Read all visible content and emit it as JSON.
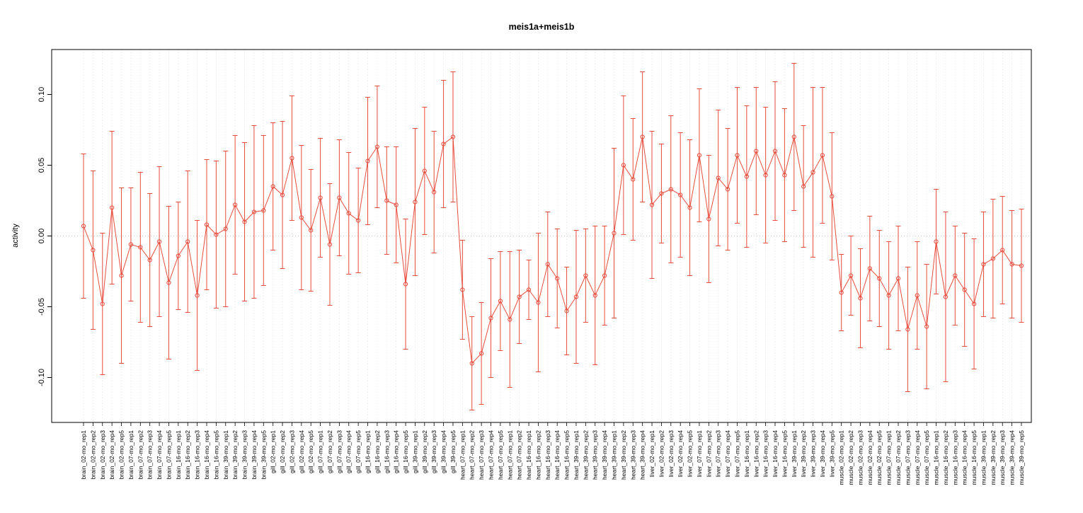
{
  "chart_data": {
    "type": "line",
    "title": "meis1a+meis1b",
    "xlabel": "",
    "ylabel": "activity",
    "legend": "none",
    "point_style": "open-circle",
    "error_bars": true,
    "series_color": "#e74c3c",
    "grid_color": "#d9d9d9",
    "zero_line_color": "#bbbbbb",
    "grid": "vertical dotted line per category, dotted horizontal line at 0",
    "ylim": [
      -0.13,
      0.125
    ],
    "ytick_values": [
      -0.1,
      -0.05,
      0.0,
      0.05,
      0.1
    ],
    "ytick_labels": [
      "-0.10",
      "-0.05",
      "0.00",
      "0.05",
      "0.10"
    ],
    "categories": [
      "brain_02-mo_rep1",
      "brain_02-mo_rep2",
      "brain_02-mo_rep3",
      "brain_02-mo_rep4",
      "brain_02-mo_rep5",
      "brain_07-mo_rep1",
      "brain_07-mo_rep2",
      "brain_07-mo_rep3",
      "brain_07-mo_rep4",
      "brain_07-mo_rep5",
      "brain_16-mo_rep1",
      "brain_16-mo_rep2",
      "brain_16-mo_rep3",
      "brain_16-mo_rep4",
      "brain_16-mo_rep5",
      "brain_39-mo_rep1",
      "brain_39-mo_rep2",
      "brain_39-mo_rep3",
      "brain_39-mo_rep4",
      "brain_39-mo_rep5",
      "gill_02-mo_rep1",
      "gill_02-mo_rep2",
      "gill_02-mo_rep3",
      "gill_02-mo_rep4",
      "gill_02-mo_rep5",
      "gill_07-mo_rep1",
      "gill_07-mo_rep2",
      "gill_07-mo_rep3",
      "gill_07-mo_rep4",
      "gill_07-mo_rep5",
      "gill_16-mo_rep1",
      "gill_16-mo_rep2",
      "gill_16-mo_rep3",
      "gill_16-mo_rep4",
      "gill_16-mo_rep5",
      "gill_39-mo_rep1",
      "gill_39-mo_rep2",
      "gill_39-mo_rep3",
      "gill_39-mo_rep4",
      "gill_39-mo_rep5",
      "heart_07-mo_rep1",
      "heart_07-mo_rep2",
      "heart_07-mo_rep3",
      "heart_07-mo_rep4",
      "heart_07-mo_rep5",
      "heart_07-mo_rep1",
      "heart_07-mo_rep2",
      "heart_16-mo_rep1",
      "heart_16-mo_rep2",
      "heart_16-mo_rep3",
      "heart_16-mo_rep4",
      "heart_16-mo_rep5",
      "heart_39-mo_rep1",
      "heart_39-mo_rep2",
      "heart_39-mo_rep3",
      "heart_39-mo_rep4",
      "heart_39-mo_rep1",
      "heart_39-mo_rep2",
      "heart_39-mo_rep3",
      "heart_39-mo_rep4",
      "liver_02-mo_rep1",
      "liver_02-mo_rep2",
      "liver_02-mo_rep3",
      "liver_02-mo_rep4",
      "liver_02-mo_rep5",
      "liver_07-mo_rep1",
      "liver_07-mo_rep2",
      "liver_07-mo_rep3",
      "liver_07-mo_rep4",
      "liver_07-mo_rep5",
      "liver_16-mo_rep1",
      "liver_16-mo_rep2",
      "liver_16-mo_rep3",
      "liver_16-mo_rep4",
      "liver_16-mo_rep5",
      "liver_39-mo_rep1",
      "liver_39-mo_rep2",
      "liver_39-mo_rep3",
      "liver_39-mo_rep4",
      "liver_39-mo_rep5",
      "muscle_02-mo_rep1",
      "muscle_02-mo_rep2",
      "muscle_02-mo_rep3",
      "muscle_02-mo_rep4",
      "muscle_02-mo_rep5",
      "muscle_07-mo_rep1",
      "muscle_07-mo_rep2",
      "muscle_07-mo_rep3",
      "muscle_07-mo_rep4",
      "muscle_07-mo_rep5",
      "muscle_16-mo_rep1",
      "muscle_16-mo_rep2",
      "muscle_16-mo_rep3",
      "muscle_16-mo_rep4",
      "muscle_16-mo_rep5",
      "muscle_39-mo_rep1",
      "muscle_39-mo_rep2",
      "muscle_39-mo_rep3",
      "muscle_39-mo_rep4",
      "muscle_39-mo_rep5"
    ],
    "means": [
      0.007,
      -0.01,
      -0.048,
      0.02,
      -0.028,
      -0.006,
      -0.008,
      -0.017,
      -0.004,
      -0.033,
      -0.014,
      -0.004,
      -0.042,
      0.008,
      0.001,
      0.005,
      0.022,
      0.01,
      0.017,
      0.018,
      0.035,
      0.029,
      0.055,
      0.013,
      0.004,
      0.027,
      -0.006,
      0.027,
      0.016,
      0.011,
      0.053,
      0.063,
      0.025,
      0.022,
      -0.034,
      0.024,
      0.046,
      0.031,
      0.065,
      0.07,
      -0.038,
      -0.09,
      -0.083,
      -0.058,
      -0.046,
      -0.059,
      -0.043,
      -0.038,
      -0.047,
      -0.02,
      -0.03,
      -0.053,
      -0.043,
      -0.028,
      -0.042,
      -0.028,
      0.002,
      0.05,
      0.04,
      0.07,
      0.022,
      0.03,
      0.033,
      0.029,
      0.02,
      0.057,
      0.012,
      0.041,
      0.033,
      0.057,
      0.042,
      0.06,
      0.043,
      0.06,
      0.043,
      0.07,
      0.035,
      0.045,
      0.057,
      0.028,
      -0.04,
      -0.028,
      -0.044,
      -0.023,
      -0.03,
      -0.042,
      -0.03,
      -0.066,
      -0.042,
      -0.064,
      -0.004,
      -0.043,
      -0.028,
      -0.038,
      -0.048,
      -0.02,
      -0.016,
      -0.01,
      -0.02,
      -0.021
    ],
    "errors": [
      0.051,
      0.056,
      0.05,
      0.054,
      0.062,
      0.04,
      0.053,
      0.047,
      0.053,
      0.054,
      0.038,
      0.05,
      0.053,
      0.046,
      0.052,
      0.055,
      0.049,
      0.056,
      0.061,
      0.053,
      0.045,
      0.052,
      0.044,
      0.051,
      0.043,
      0.042,
      0.043,
      0.041,
      0.043,
      0.037,
      0.045,
      0.043,
      0.038,
      0.041,
      0.046,
      0.052,
      0.045,
      0.043,
      0.045,
      0.046,
      0.035,
      0.033,
      0.036,
      0.042,
      0.035,
      0.048,
      0.033,
      0.021,
      0.049,
      0.037,
      0.035,
      0.031,
      0.047,
      0.033,
      0.049,
      0.035,
      0.06,
      0.049,
      0.043,
      0.046,
      0.052,
      0.035,
      0.052,
      0.044,
      0.048,
      0.047,
      0.045,
      0.048,
      0.043,
      0.048,
      0.05,
      0.045,
      0.048,
      0.049,
      0.047,
      0.052,
      0.043,
      0.06,
      0.048,
      0.045,
      0.027,
      0.028,
      0.035,
      0.037,
      0.034,
      0.038,
      0.037,
      0.044,
      0.038,
      0.044,
      0.037,
      0.06,
      0.035,
      0.04,
      0.046,
      0.037,
      0.042,
      0.038,
      0.038,
      0.04
    ]
  }
}
